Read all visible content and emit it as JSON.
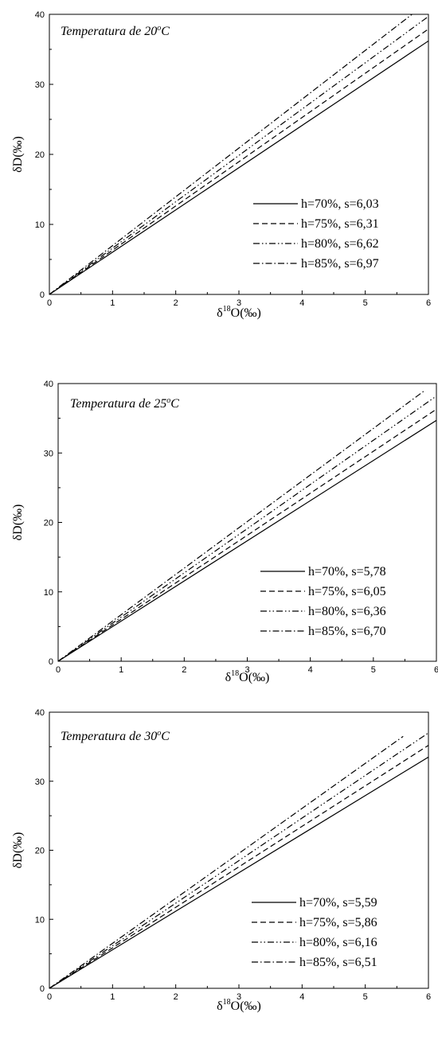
{
  "chart_data": [
    {
      "type": "line",
      "title_prefix": "Temperatura de 20",
      "title_sup": "o",
      "title_suffix": "C",
      "xlabel_prefix": "δ",
      "xlabel_sup": "18",
      "xlabel_suffix": "O(‰)",
      "ylabel": "δD(‰)",
      "xlim": [
        0,
        6
      ],
      "ylim": [
        0,
        40
      ],
      "xticks": [
        "0",
        "1",
        "2",
        "3",
        "4",
        "5",
        "6"
      ],
      "yticks": [
        "0",
        "10",
        "20",
        "30",
        "40"
      ],
      "grid": false,
      "legend_position": "bottom-right",
      "series": [
        {
          "name": "h=70%, s=6,03",
          "dash": "solid",
          "x": [
            0,
            6
          ],
          "y": [
            0,
            36.2
          ]
        },
        {
          "name": "h=75%, s=6,31",
          "dash": "dash",
          "x": [
            0,
            6
          ],
          "y": [
            0,
            37.9
          ]
        },
        {
          "name": "h=80%, s=6,62",
          "dash": "dash-dot-dot",
          "x": [
            0,
            6
          ],
          "y": [
            0,
            39.7
          ]
        },
        {
          "name": "h=85%, s=6,97",
          "dash": "dash-dot",
          "x": [
            0,
            5.74
          ],
          "y": [
            0,
            40
          ]
        }
      ]
    },
    {
      "type": "line",
      "title_prefix": "Temperatura de 25",
      "title_sup": "o",
      "title_suffix": "C",
      "xlabel_prefix": "δ",
      "xlabel_sup": "18",
      "xlabel_suffix": "O(‰)",
      "ylabel": "δD(‰)",
      "xlim": [
        0,
        6
      ],
      "ylim": [
        0,
        40
      ],
      "xticks": [
        "0",
        "1",
        "2",
        "3",
        "4",
        "5",
        "6"
      ],
      "yticks": [
        "0",
        "10",
        "20",
        "30",
        "40"
      ],
      "grid": false,
      "legend_position": "bottom-right",
      "series": [
        {
          "name": "h=70%, s=5,78",
          "dash": "solid",
          "x": [
            0,
            6
          ],
          "y": [
            0,
            34.7
          ]
        },
        {
          "name": "h=75%, s=6,05",
          "dash": "dash",
          "x": [
            0,
            6
          ],
          "y": [
            0,
            36.3
          ]
        },
        {
          "name": "h=80%, s=6,36",
          "dash": "dash-dot-dot",
          "x": [
            0,
            6
          ],
          "y": [
            0,
            38.2
          ]
        },
        {
          "name": "h=85%, s=6,70",
          "dash": "dash-dot",
          "x": [
            0,
            5.8
          ],
          "y": [
            0,
            38.9
          ]
        }
      ]
    },
    {
      "type": "line",
      "title_prefix": "Temperatura de 30",
      "title_sup": "o",
      "title_suffix": "C",
      "xlabel_prefix": "δ",
      "xlabel_sup": "18",
      "xlabel_suffix": "O(‰)",
      "ylabel": "δD(‰)",
      "xlim": [
        0,
        6
      ],
      "ylim": [
        0,
        40
      ],
      "xticks": [
        "0",
        "1",
        "2",
        "3",
        "4",
        "5",
        "6"
      ],
      "yticks": [
        "0",
        "10",
        "20",
        "30",
        "40"
      ],
      "grid": false,
      "legend_position": "bottom-right",
      "series": [
        {
          "name": "h=70%, s=5,59",
          "dash": "solid",
          "x": [
            0,
            6
          ],
          "y": [
            0,
            33.5
          ]
        },
        {
          "name": "h=75%, s=5,86",
          "dash": "dash",
          "x": [
            0,
            6
          ],
          "y": [
            0,
            35.2
          ]
        },
        {
          "name": "h=80%, s=6,16",
          "dash": "dash-dot-dot",
          "x": [
            0,
            6
          ],
          "y": [
            0,
            37
          ]
        },
        {
          "name": "h=85%, s=6,51",
          "dash": "dash-dot",
          "x": [
            0,
            5.6
          ],
          "y": [
            0,
            36.5
          ]
        }
      ]
    }
  ]
}
